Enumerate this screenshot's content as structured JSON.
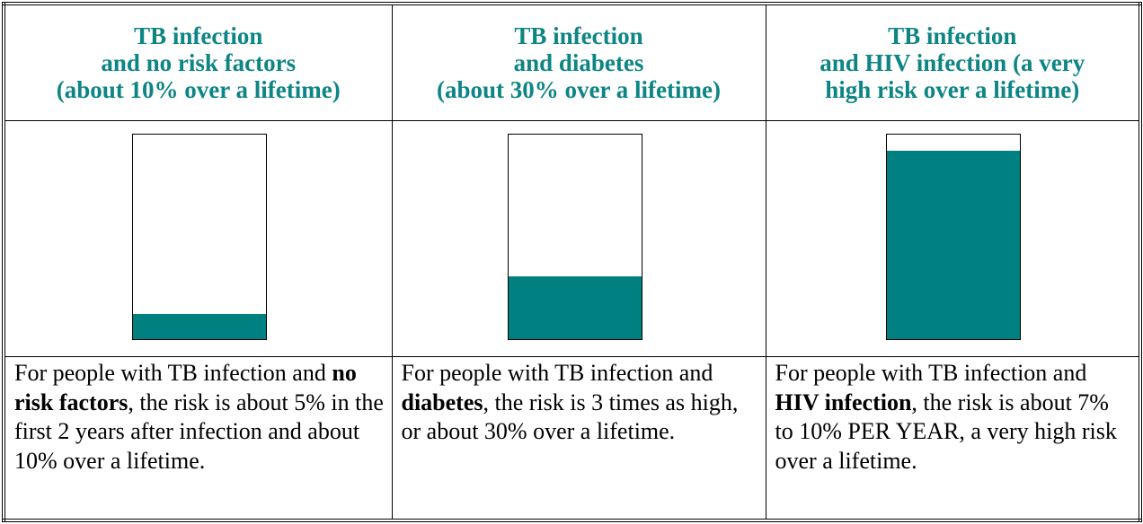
{
  "table": {
    "header": [
      [
        "TB infection",
        "and no risk factors",
        "(about 10% over a lifetime)"
      ],
      [
        "TB infection",
        "and diabetes",
        "(about 30% over a lifetime)"
      ],
      [
        "TB infection",
        "and HIV infection (a very",
        "high risk over a lifetime)"
      ]
    ],
    "body": [
      {
        "before": "For people with TB infection and ",
        "bold": "no risk factors",
        "after": ", the risk is about 5% in the first 2 years after infection and about 10% over a lifetime."
      },
      {
        "before": "For people with TB infection and ",
        "bold": "diabetes",
        "after": ", the risk is 3 times as high, or about 30% over a lifetime."
      },
      {
        "before": "For people with TB infection and ",
        "bold": "HIV infection",
        "after": ", the risk is about 7% to 10% PER YEAR, a very high risk over a lifetime."
      }
    ]
  }
}
